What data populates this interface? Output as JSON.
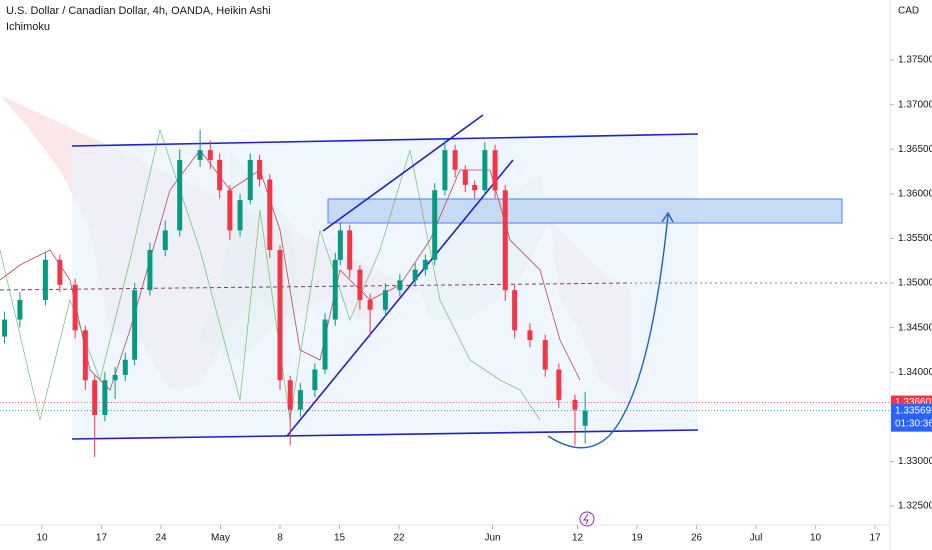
{
  "chart_data": {
    "type": "candlestick",
    "title": "U.S. Dollar / Canadian Dollar, 4h, OANDA, Heikin Ashi",
    "subtitle": "Ichimoku",
    "y_axis_label": "CAD",
    "up_color": "#089981",
    "down_color": "#f23645",
    "grid": false,
    "xlim": [
      -4.94,
      99.76
    ],
    "ylim": [
      1.32287,
      1.38173
    ],
    "xticks": [
      {
        "value": 0,
        "label": "10"
      },
      {
        "value": 7,
        "label": "17"
      },
      {
        "value": 14,
        "label": "24"
      },
      {
        "value": 21,
        "label": "May"
      },
      {
        "value": 28,
        "label": "8"
      },
      {
        "value": 35,
        "label": "15"
      },
      {
        "value": 42,
        "label": "22"
      },
      {
        "value": 53,
        "label": "Jun"
      },
      {
        "value": 63,
        "label": "12"
      },
      {
        "value": 70,
        "label": "19"
      },
      {
        "value": 77,
        "label": "26"
      },
      {
        "value": 84,
        "label": "Jul"
      },
      {
        "value": 91,
        "label": "10"
      },
      {
        "value": 98,
        "label": "17"
      }
    ],
    "yticks": [
      {
        "value": 1.375,
        "label": "1.37500"
      },
      {
        "value": 1.37,
        "label": "1.37000"
      },
      {
        "value": 1.365,
        "label": "1.36500"
      },
      {
        "value": 1.36,
        "label": "1.36000"
      },
      {
        "value": 1.355,
        "label": "1.35500"
      },
      {
        "value": 1.35,
        "label": "1.35000"
      },
      {
        "value": 1.345,
        "label": "1.34500"
      },
      {
        "value": 1.34,
        "label": "1.34000"
      },
      {
        "value": 1.33,
        "label": "1.33000"
      },
      {
        "value": 1.325,
        "label": "1.32500"
      }
    ],
    "price_tags": [
      {
        "value": 1.3366,
        "label": "1.33660",
        "color": "#f23645"
      },
      {
        "value": 1.33569,
        "label": "1.33569",
        "color": "#2962ff"
      }
    ],
    "countdown": "01:30:36",
    "x": [
      -4.4,
      -2.6,
      0.4,
      2.1,
      3.9,
      5.1,
      6.2,
      7.4,
      8.6,
      9.8,
      10.9,
      12.7,
      14.5,
      16.2,
      18.6,
      19.8,
      20.9,
      22.1,
      23.3,
      24.5,
      25.6,
      26.8,
      28.0,
      29.2,
      30.4,
      32.1,
      33.3,
      34.5,
      35.1,
      36.2,
      37.4,
      38.6,
      40.4,
      42.1,
      43.9,
      45.1,
      46.2,
      47.4,
      48.6,
      49.8,
      50.9,
      52.1,
      53.3,
      54.5,
      55.6,
      57.4,
      59.2,
      60.8,
      62.7,
      63.9
    ],
    "open": [
      1.344,
      1.3459,
      1.3481,
      1.3526,
      1.3498,
      1.3447,
      1.3391,
      1.3352,
      1.3391,
      1.3397,
      1.3414,
      1.3492,
      1.3537,
      1.3559,
      1.3638,
      1.3649,
      1.3638,
      1.3604,
      1.3559,
      1.3593,
      1.3638,
      1.3616,
      1.3537,
      1.3391,
      1.3358,
      1.338,
      1.3403,
      1.3459,
      1.3526,
      1.3559,
      1.3515,
      1.3481,
      1.347,
      1.3492,
      1.3503,
      1.3515,
      1.3526,
      1.3604,
      1.3649,
      1.3627,
      1.361,
      1.3604,
      1.3649,
      1.3604,
      1.3492,
      1.3447,
      1.3436,
      1.3403,
      1.3369,
      1.334
    ],
    "high": [
      1.3468,
      1.349,
      1.3535,
      1.3532,
      1.3505,
      1.3452,
      1.3396,
      1.34,
      1.3406,
      1.3422,
      1.35,
      1.3545,
      1.357,
      1.365,
      1.3672,
      1.366,
      1.3645,
      1.361,
      1.36,
      1.3645,
      1.3644,
      1.3622,
      1.3542,
      1.3396,
      1.3388,
      1.341,
      1.3466,
      1.3534,
      1.3568,
      1.3565,
      1.352,
      1.3488,
      1.35,
      1.351,
      1.3522,
      1.3532,
      1.3612,
      1.366,
      1.3655,
      1.3632,
      1.3615,
      1.3658,
      1.3655,
      1.361,
      1.3498,
      1.3455,
      1.3442,
      1.341,
      1.3375,
      1.3378
    ],
    "low": [
      1.3432,
      1.345,
      1.3475,
      1.349,
      1.3438,
      1.338,
      1.3305,
      1.3345,
      1.337,
      1.339,
      1.3408,
      1.3486,
      1.353,
      1.3552,
      1.363,
      1.3628,
      1.3595,
      1.3548,
      1.3552,
      1.3588,
      1.3608,
      1.3528,
      1.338,
      1.3318,
      1.335,
      1.3372,
      1.3398,
      1.3452,
      1.352,
      1.3506,
      1.347,
      1.344,
      1.3462,
      1.3485,
      1.3496,
      1.3508,
      1.352,
      1.3598,
      1.3618,
      1.3602,
      1.3595,
      1.3598,
      1.3595,
      1.348,
      1.3438,
      1.3428,
      1.3395,
      1.336,
      1.3318,
      1.332
    ],
    "close": [
      1.3459,
      1.3481,
      1.3526,
      1.3498,
      1.3447,
      1.3391,
      1.3352,
      1.3391,
      1.3397,
      1.3414,
      1.3492,
      1.3537,
      1.3559,
      1.3638,
      1.3649,
      1.3638,
      1.3604,
      1.3559,
      1.3593,
      1.3638,
      1.3616,
      1.3537,
      1.3391,
      1.3358,
      1.338,
      1.3403,
      1.3459,
      1.3526,
      1.3559,
      1.3515,
      1.3481,
      1.347,
      1.3492,
      1.3503,
      1.3515,
      1.3526,
      1.3604,
      1.3649,
      1.3627,
      1.361,
      1.3604,
      1.3649,
      1.3604,
      1.3492,
      1.3447,
      1.3436,
      1.3403,
      1.3369,
      1.3358,
      1.3357
    ]
  }
}
